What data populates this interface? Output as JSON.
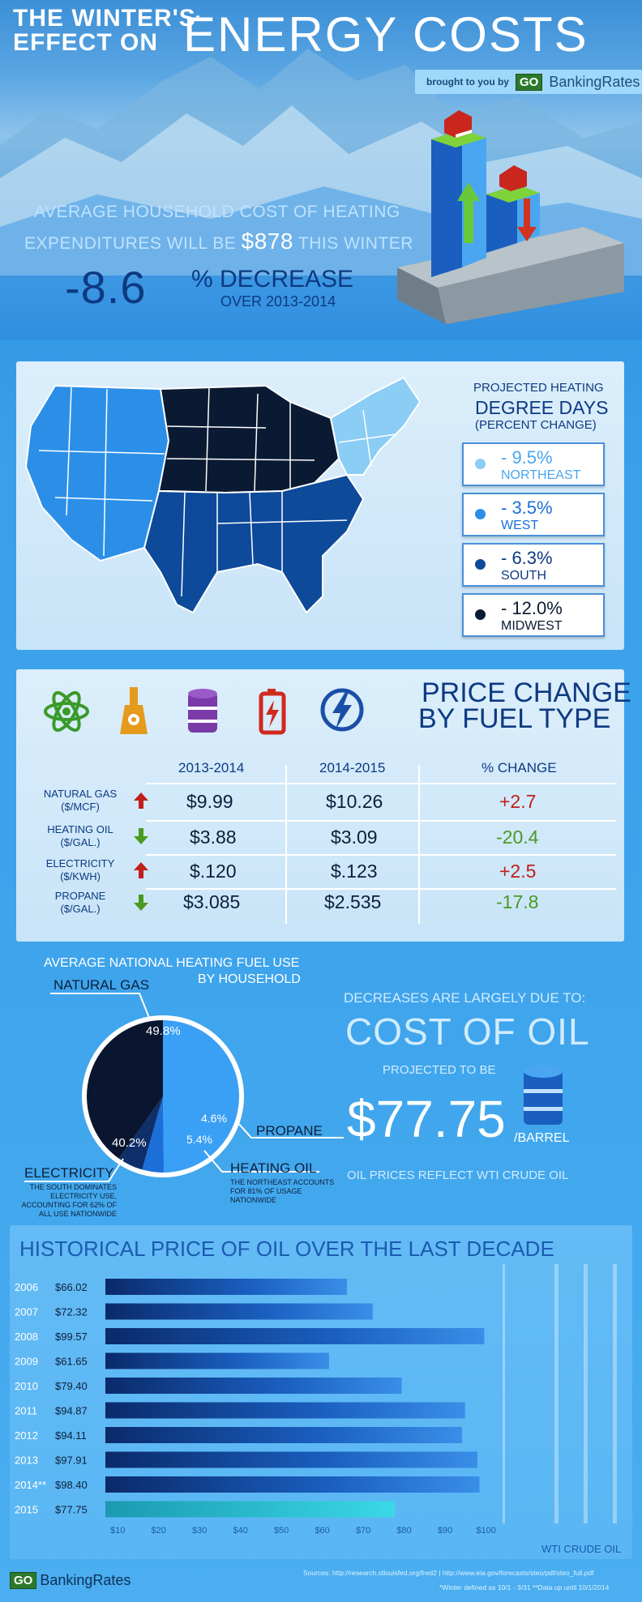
{
  "header": {
    "title_small_line1": "THE WINTER'S",
    "title_small_mark": "*",
    "title_small_line2": "EFFECT ON",
    "title_big": "ENERGY COSTS",
    "brought_by": "brought to you by",
    "brand_go": "GO",
    "brand_name": "BankingRates"
  },
  "headline": {
    "line1": "AVERAGE HOUSEHOLD COST OF HEATING",
    "line2_pre": "EXPENDITURES WILL BE",
    "amount": "$878",
    "line2_post": "THIS WINTER",
    "change_value": "-8.6",
    "change_word": "% DECREASE",
    "period": "OVER 2013-2014"
  },
  "degree_days": {
    "title1": "PROJECTED HEATING",
    "title2": "DEGREE DAYS",
    "title3": "(PERCENT CHANGE)",
    "regions": [
      {
        "value": "- 9.5%",
        "region": "NORTHEAST",
        "color": "#8ccdf5"
      },
      {
        "value": "- 3.5%",
        "region": "WEST",
        "color": "#2b8fe8"
      },
      {
        "value": "- 6.3%",
        "region": "SOUTH",
        "color": "#0d4a9a"
      },
      {
        "value": "- 12.0%",
        "region": "MIDWEST",
        "color": "#0a1a33"
      }
    ]
  },
  "fuel_prices": {
    "title1": "PRICE CHANGE",
    "title2": "BY FUEL TYPE",
    "icons": [
      "atom-icon",
      "oil-pump-icon",
      "barrel-icon",
      "battery-icon",
      "lightning-icon"
    ],
    "col_2013": "2013-2014",
    "col_2014": "2014-2015",
    "col_change": "% CHANGE",
    "rows": [
      {
        "name": "NATURAL GAS",
        "unit": "($/MCF)",
        "dir": "up",
        "y2013": "$9.99",
        "y2014": "$10.26",
        "change": "+2.7"
      },
      {
        "name": "HEATING OIL",
        "unit": "($/GAL.)",
        "dir": "down",
        "y2013": "$3.88",
        "y2014": "$3.09",
        "change": "-20.4"
      },
      {
        "name": "ELECTRICITY",
        "unit": "($/KWH)",
        "dir": "up",
        "y2013": "$.120",
        "y2014": "$.123",
        "change": "+2.5"
      },
      {
        "name": "PROPANE",
        "unit": "($/GAL.)",
        "dir": "down",
        "y2013": "$3.085",
        "y2014": "$2.535",
        "change": "-17.8"
      }
    ]
  },
  "heating_use": {
    "title1": "AVERAGE NATIONAL HEATING FUEL USE",
    "title2": "BY HOUSEHOLD",
    "slices": [
      {
        "name": "NATURAL GAS",
        "pct": 49.8,
        "label": "49.8%",
        "color": "#3aa0f5"
      },
      {
        "name": "PROPANE",
        "pct": 4.6,
        "label": "4.6%",
        "color": "#1c6fd8"
      },
      {
        "name": "HEATING OIL",
        "pct": 5.4,
        "label": "5.4%",
        "color": "#0e2f6a"
      },
      {
        "name": "ELECTRICITY",
        "pct": 40.2,
        "label": "40.2%",
        "color": "#0a1630"
      }
    ],
    "electricity_note": "THE SOUTH DOMINATES ELECTRICITY USE, ACCOUNTING FOR 62% OF ALL USE NATIONWIDE",
    "heating_oil_note": "THE NORTHEAST ACCOUNTS FOR 81% OF USAGE NATIONWIDE"
  },
  "oil_cost": {
    "intro": "DECREASES ARE LARGELY DUE TO:",
    "title": "COST OF OIL",
    "projected": "PROJECTED TO BE",
    "price": "$77.75",
    "unit": "/BARREL",
    "note": "OIL PRICES REFLECT WTI CRUDE OIL"
  },
  "chart_data": {
    "type": "bar",
    "orientation": "horizontal",
    "title": "HISTORICAL PRICE OF OIL OVER THE LAST DECADE",
    "categories": [
      "2006",
      "2007",
      "2008",
      "2009",
      "2010",
      "2011",
      "2012",
      "2013",
      "2014**",
      "2015"
    ],
    "value_labels": [
      "$66.02",
      "$72.32",
      "$99.57",
      "$61.65",
      "$79.40",
      "$94.87",
      "$94.11",
      "$97.91",
      "$98.40",
      "$77.75"
    ],
    "values": [
      66.02,
      72.32,
      99.57,
      61.65,
      79.4,
      94.87,
      94.11,
      97.91,
      98.4,
      77.75
    ],
    "x_ticks": [
      "$10",
      "$20",
      "$30",
      "$40",
      "$50",
      "$60",
      "$70",
      "$80",
      "$90",
      "$100"
    ],
    "xlim": [
      7,
      108
    ],
    "series_label": "WTI CRUDE OIL",
    "highlight_color": "#2fd3e0",
    "bar_color": "#0d3a8a"
  },
  "footer": {
    "brand_go": "GO",
    "brand_name": "BankingRates",
    "sources": "Sources: http://research.stlouisfed.org/fred2 | http://www.eia.gov/forecasts/steo/pdf/steo_full.pdf",
    "winter_note": "*Winter defined as 10/1 - 3/31   **Data up until 10/1/2014"
  }
}
